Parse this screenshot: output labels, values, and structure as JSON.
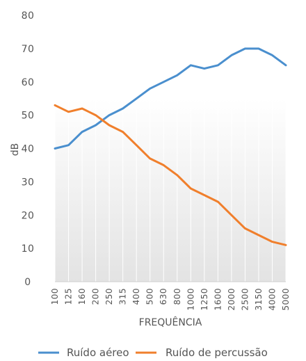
{
  "chart_data": {
    "type": "line",
    "xlabel": "FREQUÊNCIA",
    "ylabel": "dB",
    "ylim": [
      0,
      80
    ],
    "yticks": [
      "0",
      "10",
      "20",
      "30",
      "40",
      "50",
      "60",
      "70",
      "80"
    ],
    "categories": [
      "100",
      "125",
      "160",
      "200",
      "250",
      "315",
      "400",
      "500",
      "630",
      "800",
      "1000",
      "1250",
      "1600",
      "2000",
      "2500",
      "3150",
      "4000",
      "5000"
    ],
    "series": [
      {
        "name": "Ruído aéreo",
        "color": "#4a8fce",
        "values": [
          40,
          41,
          45,
          47,
          50,
          52,
          55,
          58,
          60,
          62,
          65,
          64,
          65,
          68,
          70,
          70,
          68,
          65
        ]
      },
      {
        "name": "Ruído de percussão",
        "color": "#f07f2c",
        "values": [
          53,
          51,
          52,
          50,
          47,
          45,
          41,
          37,
          35,
          32,
          28,
          26,
          24,
          20,
          16,
          14,
          12,
          11
        ]
      }
    ],
    "grid": "vertical lines at each category",
    "legend": "bottom"
  }
}
